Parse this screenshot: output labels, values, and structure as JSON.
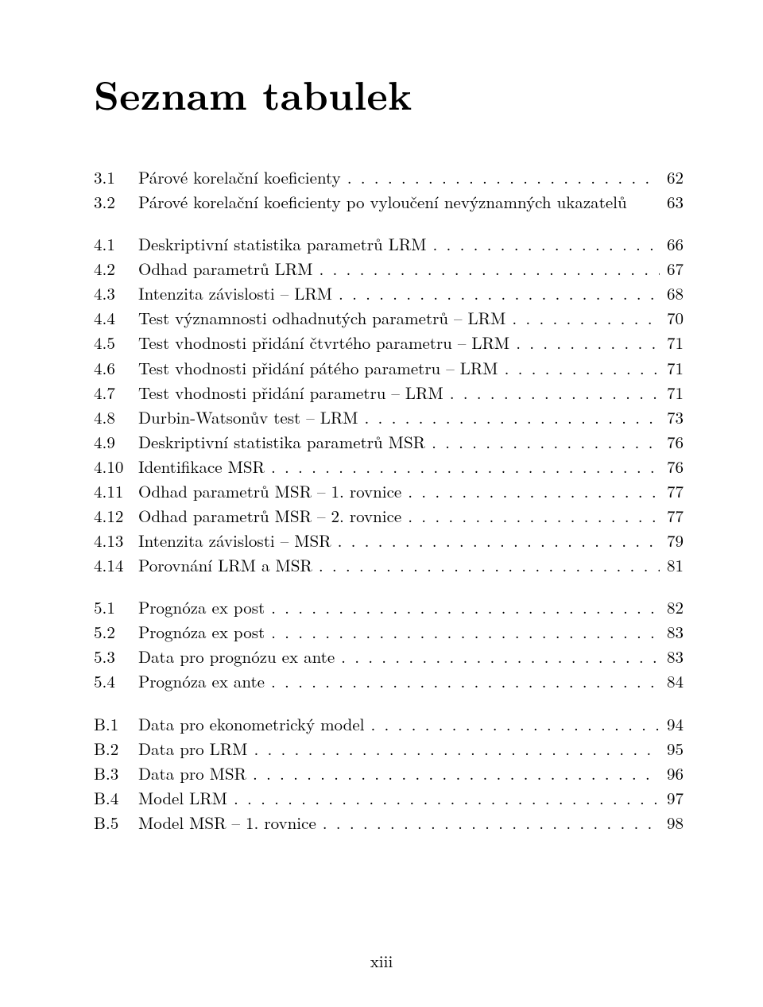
{
  "title": "Seznam tabulek",
  "page_number": "xiii",
  "groups": [
    [
      {
        "num": "3.1",
        "label": "Párové korelační koeficienty",
        "page": "62"
      },
      {
        "num": "3.2",
        "label": "Párové korelační koeficienty po vyloučení nevýznamných ukazatelů",
        "page": "63",
        "no_leader": true
      }
    ],
    [
      {
        "num": "4.1",
        "label": "Deskriptivní statistika parametrů LRM",
        "page": "66"
      },
      {
        "num": "4.2",
        "label": "Odhad parametrů LRM",
        "page": "67"
      },
      {
        "num": "4.3",
        "label": "Intenzita závislosti – LRM",
        "page": "68"
      },
      {
        "num": "4.4",
        "label": "Test významnosti odhadnutých parametrů – LRM",
        "page": "70"
      },
      {
        "num": "4.5",
        "label": "Test vhodnosti přidání čtvrtého parametru – LRM",
        "page": "71"
      },
      {
        "num": "4.6",
        "label": "Test vhodnosti přidání pátého parametru – LRM",
        "page": "71"
      },
      {
        "num": "4.7",
        "label": "Test vhodnosti přidání parametru – LRM",
        "page": "71"
      },
      {
        "num": "4.8",
        "label": "Durbin-Watsonův test – LRM",
        "page": "73"
      },
      {
        "num": "4.9",
        "label": "Deskriptivní statistika parametrů MSR",
        "page": "76"
      },
      {
        "num": "4.10",
        "label": "Identifikace MSR",
        "page": "76"
      },
      {
        "num": "4.11",
        "label": "Odhad parametrů MSR – 1. rovnice",
        "page": "77"
      },
      {
        "num": "4.12",
        "label": "Odhad parametrů MSR – 2. rovnice",
        "page": "77"
      },
      {
        "num": "4.13",
        "label": "Intenzita závislosti – MSR",
        "page": "79"
      },
      {
        "num": "4.14",
        "label": "Porovnání LRM a MSR",
        "page": "81"
      }
    ],
    [
      {
        "num": "5.1",
        "label": "Prognóza ex post",
        "page": "82"
      },
      {
        "num": "5.2",
        "label": "Prognóza ex post",
        "page": "83"
      },
      {
        "num": "5.3",
        "label": "Data pro prognózu ex ante",
        "page": "83"
      },
      {
        "num": "5.4",
        "label": "Prognóza ex ante",
        "page": "84"
      }
    ],
    [
      {
        "num": "B.1",
        "label": "Data pro ekonometrický model",
        "page": "94"
      },
      {
        "num": "B.2",
        "label": "Data pro LRM",
        "page": "95"
      },
      {
        "num": "B.3",
        "label": "Data pro MSR",
        "page": "96"
      },
      {
        "num": "B.4",
        "label": "Model LRM",
        "page": "97"
      },
      {
        "num": "B.5",
        "label": "Model MSR – 1. rovnice",
        "page": "98"
      }
    ]
  ]
}
